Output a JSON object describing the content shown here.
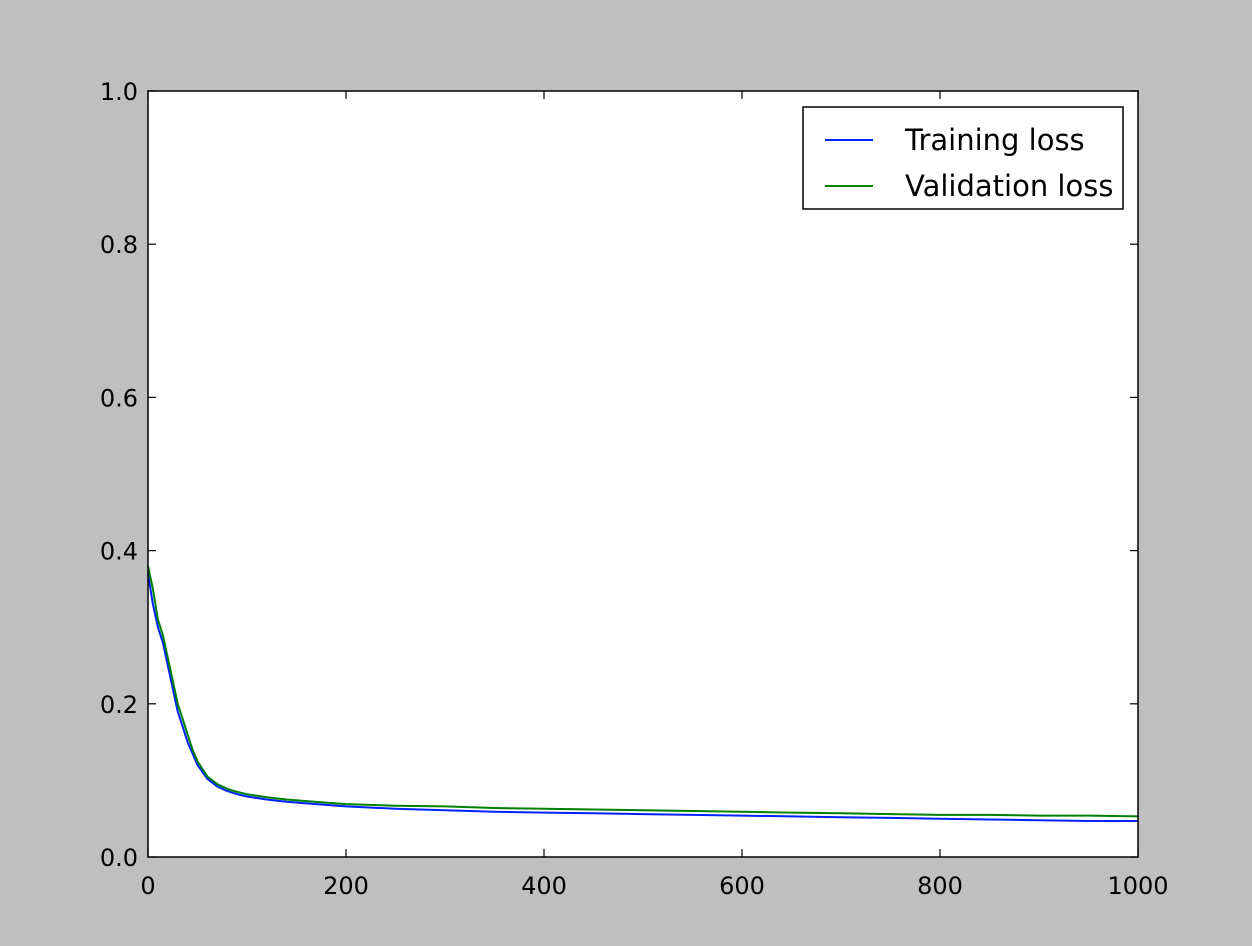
{
  "chart_data": {
    "type": "line",
    "title": "",
    "xlabel": "",
    "ylabel": "",
    "xlim": [
      0,
      1000
    ],
    "ylim": [
      0.0,
      1.0
    ],
    "grid": false,
    "legend_position": "top-right",
    "x_ticks": [
      0,
      200,
      400,
      600,
      800,
      1000
    ],
    "x_tick_labels": [
      "0",
      "200",
      "400",
      "600",
      "800",
      "1000"
    ],
    "y_ticks": [
      0.0,
      0.2,
      0.4,
      0.6,
      0.8,
      1.0
    ],
    "y_tick_labels": [
      "0.0",
      "0.2",
      "0.4",
      "0.6",
      "0.8",
      "1.0"
    ],
    "x": [
      0,
      5,
      10,
      15,
      20,
      25,
      30,
      35,
      40,
      45,
      50,
      60,
      70,
      80,
      90,
      100,
      120,
      140,
      160,
      180,
      200,
      250,
      300,
      350,
      400,
      450,
      500,
      550,
      600,
      650,
      700,
      750,
      800,
      850,
      900,
      950,
      1000
    ],
    "series": [
      {
        "name": "Training loss",
        "color": "#0022ff",
        "values": [
          0.37,
          0.33,
          0.3,
          0.28,
          0.25,
          0.22,
          0.19,
          0.17,
          0.15,
          0.135,
          0.12,
          0.102,
          0.092,
          0.086,
          0.082,
          0.079,
          0.075,
          0.072,
          0.07,
          0.068,
          0.066,
          0.063,
          0.061,
          0.059,
          0.058,
          0.057,
          0.056,
          0.055,
          0.054,
          0.053,
          0.052,
          0.051,
          0.05,
          0.049,
          0.048,
          0.047,
          0.047
        ]
      },
      {
        "name": "Validation loss",
        "color": "#008000",
        "values": [
          0.38,
          0.35,
          0.31,
          0.29,
          0.26,
          0.23,
          0.2,
          0.18,
          0.16,
          0.14,
          0.125,
          0.105,
          0.095,
          0.089,
          0.085,
          0.082,
          0.078,
          0.075,
          0.073,
          0.071,
          0.069,
          0.067,
          0.066,
          0.064,
          0.063,
          0.062,
          0.061,
          0.06,
          0.059,
          0.058,
          0.057,
          0.056,
          0.055,
          0.055,
          0.054,
          0.054,
          0.053
        ]
      }
    ]
  }
}
